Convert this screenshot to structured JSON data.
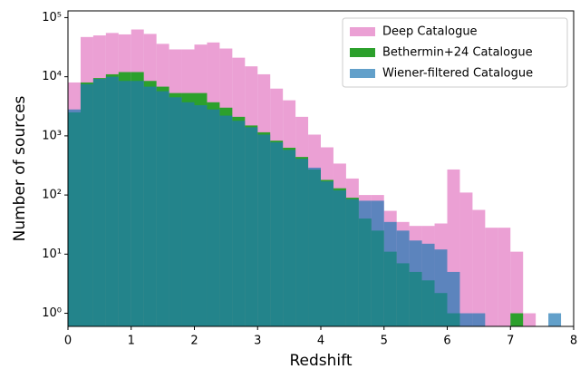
{
  "chart_data": {
    "type": "histogram",
    "xlabel": "Redshift",
    "ylabel": "Number of sources",
    "bins": [
      0,
      0.2,
      0.4,
      0.6,
      0.8,
      1,
      1.2,
      1.4,
      1.6,
      1.8,
      2,
      2.2,
      2.4,
      2.6,
      2.8,
      3,
      3.2,
      3.4,
      3.6,
      3.8,
      4,
      4.2,
      4.4,
      4.6,
      4.8,
      5,
      5.2,
      5.4,
      5.6,
      5.8,
      6,
      6.2,
      6.4,
      6.6,
      6.8,
      7,
      7.2,
      7.4,
      7.6,
      7.8,
      8
    ],
    "series": [
      {
        "name": "Deep Catalogue",
        "color": "#e377c2",
        "alpha": 0.7,
        "values": [
          8000,
          47000,
          50000,
          55000,
          52000,
          63000,
          53000,
          36000,
          29000,
          29000,
          35000,
          38000,
          30000,
          21000,
          15000,
          11000,
          6300,
          4000,
          2100,
          1050,
          640,
          340,
          190,
          100,
          100,
          54,
          35,
          30,
          30,
          33,
          270,
          110,
          56,
          28,
          28,
          11,
          1,
          0,
          0,
          0
        ]
      },
      {
        "name": "Bethermin+24 Catalogue",
        "color": "#2ca02c",
        "alpha": 1,
        "values": [
          2500,
          8000,
          9500,
          11000,
          12000,
          12000,
          8500,
          6800,
          5300,
          5300,
          5300,
          3700,
          3000,
          2100,
          1500,
          1150,
          830,
          630,
          440,
          270,
          180,
          130,
          90,
          40,
          25,
          11,
          7,
          5,
          3.6,
          2.2,
          1,
          0,
          0,
          0,
          0,
          1,
          0,
          0,
          0,
          0
        ]
      },
      {
        "name": "Wiener-filtered Catalogue",
        "color": "#1f77b4",
        "alpha": 0.7,
        "values": [
          2800,
          7500,
          9200,
          10000,
          8500,
          8500,
          6800,
          5700,
          4500,
          3700,
          3300,
          2800,
          2200,
          1800,
          1400,
          1050,
          780,
          580,
          410,
          290,
          170,
          120,
          85,
          80,
          80,
          35,
          25,
          17,
          15,
          12,
          5,
          1,
          1,
          0,
          0,
          0,
          0,
          0,
          1,
          0
        ]
      }
    ],
    "xlim": [
      0,
      8
    ],
    "xticks": [
      0,
      1,
      2,
      3,
      4,
      5,
      6,
      7,
      8
    ],
    "ylim": [
      0.6,
      130000
    ],
    "yscale": "log",
    "yticks": [
      {
        "value": 1,
        "label": "10⁰"
      },
      {
        "value": 10,
        "label": "10¹"
      },
      {
        "value": 100,
        "label": "10²"
      },
      {
        "value": 1000,
        "label": "10³"
      },
      {
        "value": 10000,
        "label": "10⁴"
      },
      {
        "value": 100000,
        "label": "10⁵"
      }
    ],
    "legend": "upper right"
  }
}
